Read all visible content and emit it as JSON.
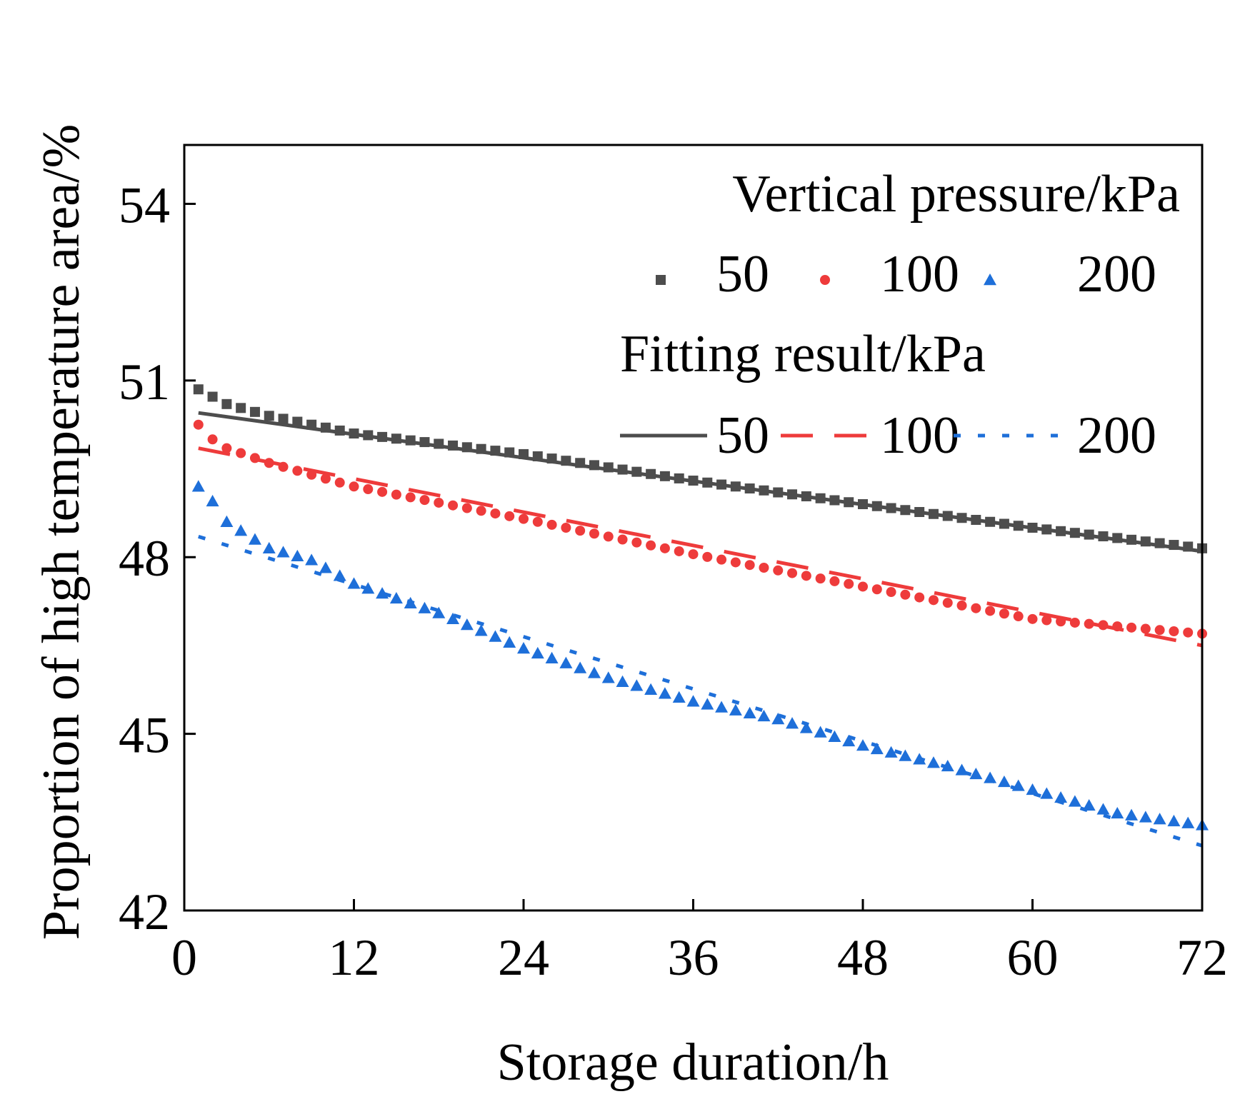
{
  "chart_data": {
    "type": "scatter",
    "title": "",
    "xlabel": "Storage duration/h",
    "ylabel": "Proportion of high temperature area/%",
    "xlim": [
      0,
      72
    ],
    "ylim": [
      42,
      55
    ],
    "xticks": [
      0,
      12,
      24,
      36,
      48,
      60,
      72
    ],
    "yticks": [
      42,
      45,
      48,
      51,
      54
    ],
    "legend": {
      "position": "top-right",
      "measured_title": "Vertical pressure/kPa",
      "fit_title": "Fitting result/kPa"
    },
    "series": [
      {
        "name": "50",
        "kind": "measured",
        "marker": "square",
        "color": "#4d4d4d",
        "x_start": 1,
        "x_step": 1,
        "count": 72,
        "anchors": [
          [
            1,
            50.85
          ],
          [
            3,
            50.6
          ],
          [
            6,
            50.4
          ],
          [
            12,
            50.1
          ],
          [
            24,
            49.75
          ],
          [
            36,
            49.3
          ],
          [
            48,
            48.9
          ],
          [
            60,
            48.5
          ],
          [
            72,
            48.15
          ]
        ]
      },
      {
        "name": "100",
        "kind": "measured",
        "marker": "circle",
        "color": "#ee3b3b",
        "x_start": 1,
        "x_step": 1,
        "count": 72,
        "anchors": [
          [
            1,
            50.25
          ],
          [
            2,
            50.0
          ],
          [
            3,
            49.85
          ],
          [
            6,
            49.6
          ],
          [
            12,
            49.2
          ],
          [
            24,
            48.65
          ],
          [
            36,
            48.05
          ],
          [
            48,
            47.5
          ],
          [
            60,
            46.95
          ],
          [
            72,
            46.7
          ]
        ]
      },
      {
        "name": "200",
        "kind": "measured",
        "marker": "triangle",
        "color": "#1e6fd9",
        "x_start": 1,
        "x_step": 1,
        "count": 72,
        "anchors": [
          [
            1,
            49.2
          ],
          [
            2,
            48.95
          ],
          [
            3,
            48.6
          ],
          [
            6,
            48.15
          ],
          [
            9,
            47.95
          ],
          [
            12,
            47.55
          ],
          [
            18,
            47.05
          ],
          [
            24,
            46.45
          ],
          [
            30,
            45.95
          ],
          [
            36,
            45.55
          ],
          [
            42,
            45.25
          ],
          [
            48,
            44.8
          ],
          [
            54,
            44.45
          ],
          [
            60,
            44.05
          ],
          [
            66,
            43.65
          ],
          [
            72,
            43.45
          ]
        ]
      },
      {
        "name": "50",
        "kind": "fit",
        "line_style": "solid",
        "color": "#4d4d4d",
        "x": [
          1,
          72
        ],
        "y": [
          50.45,
          48.1
        ]
      },
      {
        "name": "100",
        "kind": "fit",
        "line_style": "dashed",
        "color": "#ee3b3b",
        "x": [
          1,
          72
        ],
        "y": [
          49.85,
          46.5
        ]
      },
      {
        "name": "200",
        "kind": "fit",
        "line_style": "dotted",
        "color": "#1e6fd9",
        "x": [
          1,
          72
        ],
        "y": [
          48.35,
          43.1
        ]
      }
    ]
  }
}
